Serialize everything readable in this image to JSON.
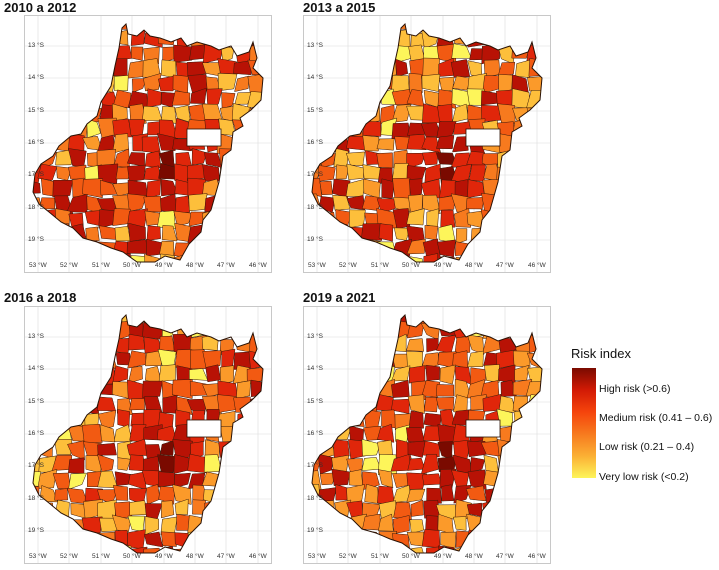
{
  "panels": [
    {
      "title": "2010 a 2012"
    },
    {
      "title": "2013 a 2015"
    },
    {
      "title": "2016 a 2018"
    },
    {
      "title": "2019 a 2021"
    }
  ],
  "axes": {
    "latitudes": [
      "13 °S",
      "14 °S",
      "15 °S",
      "16 °S",
      "17 °S",
      "18 °S",
      "19 °S"
    ],
    "longitudes": [
      "53 °W",
      "52 °W",
      "51 °W",
      "50 °W",
      "49 °W",
      "48 °W",
      "47 °W",
      "46 °W"
    ]
  },
  "legend": {
    "title": "Risk index",
    "items": [
      {
        "label": "High risk (>0.6)",
        "color": "#d21a05"
      },
      {
        "label": "Medium risk (0.41 – 0.6)",
        "color": "#f5440c"
      },
      {
        "label": "Low risk (0.21 – 0.4)",
        "color": "#f77a1e"
      },
      {
        "label": "Very low risk (<0.2)",
        "color": "#fdf55a"
      }
    ]
  },
  "palette": [
    "#7a0a00",
    "#b81205",
    "#e0260a",
    "#f25a12",
    "#f77a1e",
    "#fb9a2a",
    "#fdbf3b",
    "#fdf55a"
  ]
}
